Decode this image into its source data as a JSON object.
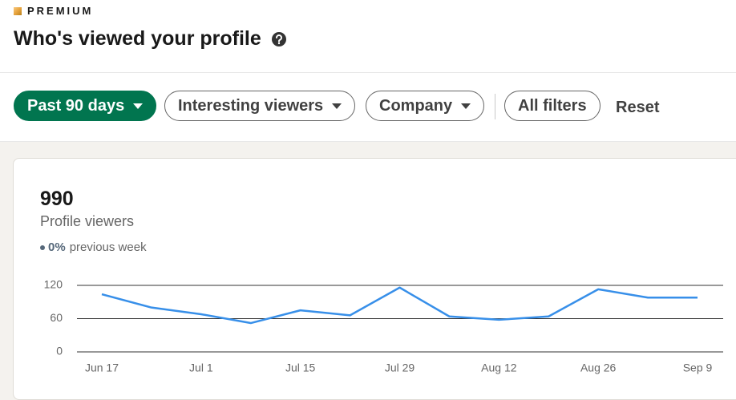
{
  "header": {
    "badge": "PREMIUM",
    "title": "Who's viewed your profile"
  },
  "filters": [
    "Past 90 days",
    "Interesting viewers",
    "Company",
    "All filters"
  ],
  "reset": "Reset",
  "summary": {
    "count": 990,
    "label": "Profile viewers",
    "change": "0%",
    "change_label": "previous week"
  },
  "chart_data": {
    "type": "line",
    "categories": [
      "Jun 17",
      null,
      "Jul 1",
      null,
      "Jul 15",
      null,
      "Jul 29",
      null,
      "Aug 12",
      null,
      "Aug 26",
      null,
      "Sep 9"
    ],
    "values": [
      104,
      80,
      68,
      52,
      75,
      66,
      116,
      64,
      58,
      64,
      113,
      98,
      98
    ],
    "color": "#378fe9",
    "ylim": [
      0,
      120
    ],
    "yticks": [
      0,
      60,
      120
    ],
    "grid": true
  }
}
